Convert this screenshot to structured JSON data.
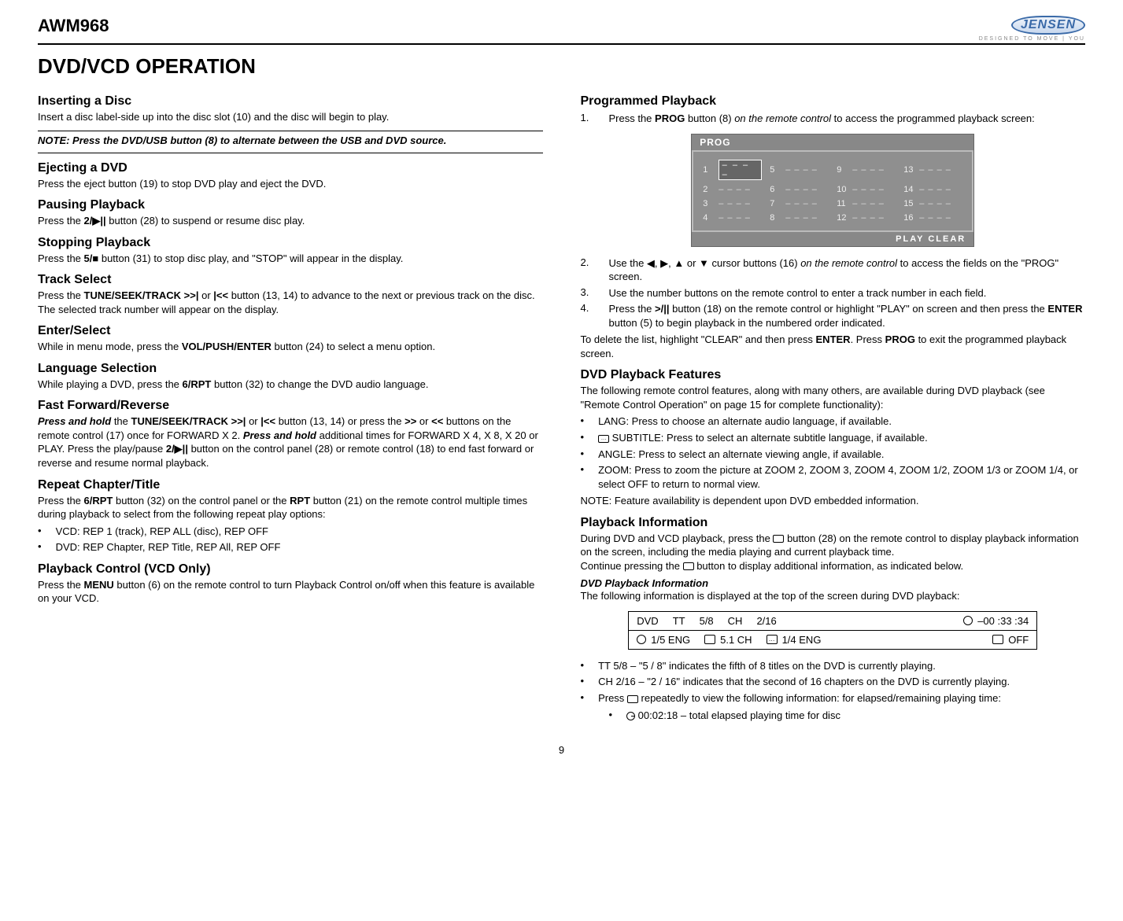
{
  "model": "AWM968",
  "brand": "JENSEN",
  "brand_sub": "DESIGNED TO MOVE | YOU",
  "page_title": "DVD/VCD OPERATION",
  "page_number": "9",
  "left": {
    "inserting": {
      "h": "Inserting a Disc",
      "p": "Insert a disc label-side up into the disc slot (10) and the disc will begin to play."
    },
    "note": "NOTE: Press the DVD/USB button (8) to alternate between the USB and DVD source.",
    "ejecting": {
      "h": "Ejecting a DVD",
      "p": "Press the eject button (19) to stop DVD play and eject the DVD."
    },
    "pausing": {
      "h": "Pausing Playback",
      "p_pre": "Press the ",
      "p_bold": "2/▶||",
      "p_post": " button (28) to suspend or resume disc play."
    },
    "stopping": {
      "h": "Stopping Playback",
      "p_pre": "Press the ",
      "p_bold": "5/■",
      "p_post": " button (31) to stop disc play, and \"STOP\" will appear in the display."
    },
    "track": {
      "h": "Track Select",
      "p_1": "Press the ",
      "b1": "TUNE/SEEK/TRACK >>|",
      "p_2": " or ",
      "b2": "|<<",
      "p_3": " button (13, 14) to advance to the next or previous track on the disc. The selected track number will appear on the display."
    },
    "enter": {
      "h": "Enter/Select",
      "p_1": "While in menu mode, press the ",
      "b": "VOL/PUSH/ENTER",
      "p_2": " button (24) to select a menu option."
    },
    "lang": {
      "h": "Language Selection",
      "p_1": "While playing a DVD, press the ",
      "b": "6/RPT",
      "p_2": " button (32) to change the DVD audio language."
    },
    "ffrev": {
      "h": "Fast Forward/Reverse",
      "i1": "Press and hold",
      "t1": " the ",
      "b1": "TUNE/SEEK/TRACK >>|",
      "t2": " or ",
      "b2": "|<<",
      "t3": " button (13, 14) or press the ",
      "b3": ">>",
      "t4": " or ",
      "b4": "<<",
      "t5": " buttons on the remote control (17) once for FORWARD X 2. ",
      "i2": "Press and hold",
      "t6": " additional times for FORWARD X 4, X 8, X 20 or PLAY. Press the play/pause ",
      "b5": "2/▶||",
      "t7": " button on the control panel (28) or remote control (18) to end fast forward or reverse and resume normal playback."
    },
    "repeat": {
      "h": "Repeat Chapter/Title",
      "p_1": "Press the ",
      "b1": "6/RPT",
      "p_2": " button (32) on the control panel or the ",
      "b2": "RPT",
      "p_3": " button (21) on the remote control multiple times during playback to select from the following repeat play options:",
      "li1": "VCD: REP 1 (track), REP ALL (disc), REP OFF",
      "li2": "DVD: REP Chapter, REP Title, REP All, REP OFF"
    },
    "pbc": {
      "h": "Playback Control (VCD Only)",
      "p_1": "Press the ",
      "b": "MENU",
      "p_2": " button (6) on the remote control to turn Playback Control on/off when this feature is available on your VCD."
    }
  },
  "right": {
    "prog": {
      "h": "Programmed Playback",
      "li1_1": "Press the ",
      "li1_b": "PROG",
      "li1_2": " button (8) ",
      "li1_i": "on the remote control",
      "li1_3": " to access the programmed playback screen:",
      "panel": {
        "title": "PROG",
        "slots": [
          {
            "n": "1",
            "v": "– – – –",
            "sel": true
          },
          {
            "n": "5",
            "v": "– – – –"
          },
          {
            "n": "9",
            "v": "– – – –"
          },
          {
            "n": "13",
            "v": "– – – –"
          },
          {
            "n": "2",
            "v": "– – – –"
          },
          {
            "n": "6",
            "v": "– – – –"
          },
          {
            "n": "10",
            "v": "– – – –"
          },
          {
            "n": "14",
            "v": "– – – –"
          },
          {
            "n": "3",
            "v": "– – – –"
          },
          {
            "n": "7",
            "v": "– – – –"
          },
          {
            "n": "11",
            "v": "– – – –"
          },
          {
            "n": "15",
            "v": "– – – –"
          },
          {
            "n": "4",
            "v": "– – – –"
          },
          {
            "n": "8",
            "v": "– – – –"
          },
          {
            "n": "12",
            "v": "– – – –"
          },
          {
            "n": "16",
            "v": "– – – –"
          }
        ],
        "footer": "PLAY    CLEAR"
      },
      "li2_1": "Use the ◀, ▶, ▲ or ▼ cursor buttons (16) ",
      "li2_i": "on the remote control",
      "li2_2": " to access the fields on the \"PROG\" screen.",
      "li3": "Use the number buttons on the remote control to enter a track number in each field.",
      "li4_1": "Press the ",
      "li4_b1": ">/||",
      "li4_2": " button (18) on the remote control or highlight \"PLAY\" on screen and then press the ",
      "li4_b2": "ENTER",
      "li4_3": " button (5) to begin playback in the numbered order indicated.",
      "tail_1": "To delete the list, highlight \"CLEAR\" and then press ",
      "tail_b1": "ENTER",
      "tail_2": ". Press ",
      "tail_b2": "PROG",
      "tail_3": " to exit the programmed playback screen."
    },
    "feat": {
      "h": "DVD Playback Features",
      "p": "The following remote control features, along with many others, are available during DVD playback (see \"Remote Control Operation\" on page 15 for complete functionality):",
      "li1": "LANG: Press to choose an alternate audio language, if available.",
      "li2": " SUBTITLE: Press to select an alternate subtitle language, if available.",
      "li3": "ANGLE: Press to select an alternate viewing angle, if available.",
      "li4": "ZOOM: Press to zoom the picture at ZOOM 2, ZOOM 3, ZOOM 4, ZOOM 1/2, ZOOM 1/3 or ZOOM 1/4, or select OFF to return to normal view.",
      "note": "NOTE: Feature availability is dependent upon DVD embedded information."
    },
    "info": {
      "h": "Playback Information",
      "p1_1": "During DVD and VCD playback, press the ",
      "p1_2": " button (28) on the remote control to display playback information on the screen, including the media playing and current playback time.",
      "p2_1": "Continue pressing the ",
      "p2_2": " button to display additional information, as indicated below.",
      "sub_h": "DVD Playback Information",
      "sub_p": "The following information is displayed at the top of the screen during DVD playback:",
      "panel": {
        "r1": {
          "c1": "DVD",
          "c2": "TT",
          "c3": "5/8",
          "c4": "CH",
          "c5": "2/16",
          "c6": "–00 :33 :34"
        },
        "r2": {
          "c1": "1/5 ENG",
          "c2": "5.1 CH",
          "c3": "1/4   ENG",
          "c4": "OFF"
        }
      },
      "li1": "TT 5/8 – \"5 / 8\" indicates the fifth of 8 titles on the DVD is currently playing.",
      "li2": "CH 2/16 – \"2 / 16\" indicates that the second of 16 chapters on the DVD is currently playing.",
      "li3_1": "Press ",
      "li3_2": " repeatedly to view the following information: for elapsed/remaining playing time:",
      "sub_li": " 00:02:18 – total elapsed playing time for disc"
    }
  }
}
